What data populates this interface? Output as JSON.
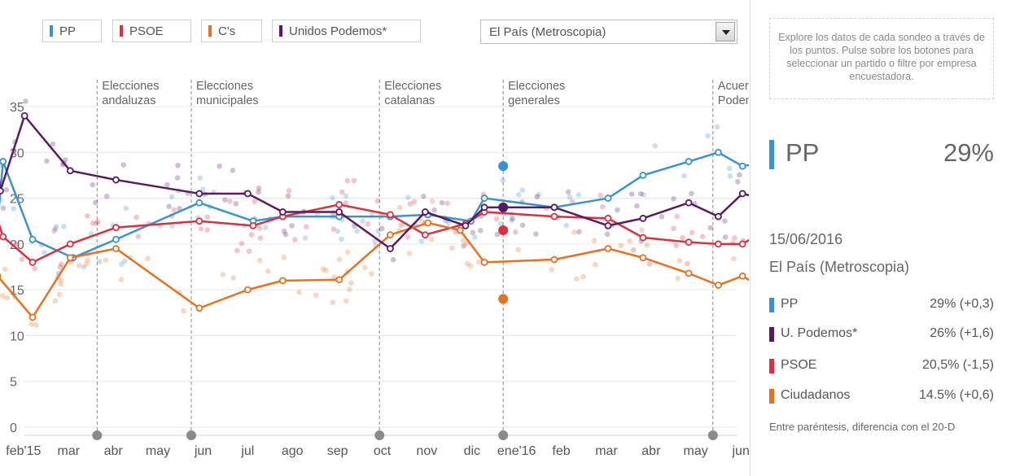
{
  "legend": [
    {
      "label": "PP",
      "color": "#3794d1"
    },
    {
      "label": "PSOE",
      "color": "#dc2f40"
    },
    {
      "label": "C's",
      "color": "#e8711f"
    },
    {
      "label": "Unidos Podemos*",
      "color": "#5a1a63"
    }
  ],
  "pollster_select": {
    "value": "El País (Metroscopia)"
  },
  "info_text": "Explore los datos de cada sondeo a través de los puntos. Pulse sobre los botones para seleccionar un partido o filtre por empresa encuestadora.",
  "selected": {
    "party": "PP",
    "value": "29%",
    "color": "#3794d1"
  },
  "detail": {
    "date": "15/06/2016",
    "pollster": "El País (Metroscopia)",
    "results": [
      {
        "name": "PP",
        "value": "29% (+0,3)",
        "color": "#3794d1"
      },
      {
        "name": "U. Podemos*",
        "value": "26% (+1,6)",
        "color": "#5a1a63"
      },
      {
        "name": "PSOE",
        "value": "20,5% (-1,5)",
        "color": "#dc2f40"
      },
      {
        "name": "Ciudadanos",
        "value": "14.5% (+0,6)",
        "color": "#e8711f"
      }
    ],
    "note": "Entre paréntesis, diferencia con el 20-D"
  },
  "chart_data": {
    "type": "line",
    "title": "",
    "xlabel": "",
    "ylabel": "",
    "ylim": [
      0,
      35
    ],
    "xlim": [
      2015.0,
      2016.5
    ],
    "y_ticks": [
      "0",
      "5",
      "10",
      "15",
      "20",
      "25",
      "30",
      "35"
    ],
    "x_ticks": [
      {
        "label": "feb'15",
        "x": 2015.083
      },
      {
        "label": "mar",
        "x": 2015.167
      },
      {
        "label": "abr",
        "x": 2015.25
      },
      {
        "label": "may",
        "x": 2015.333
      },
      {
        "label": "jun",
        "x": 2015.417
      },
      {
        "label": "jul",
        "x": 2015.5
      },
      {
        "label": "ago",
        "x": 2015.583
      },
      {
        "label": "sep",
        "x": 2015.667
      },
      {
        "label": "oct",
        "x": 2015.75
      },
      {
        "label": "nov",
        "x": 2015.833
      },
      {
        "label": "dic",
        "x": 2015.917
      },
      {
        "label": "ene'16",
        "x": 2016.0
      },
      {
        "label": "feb",
        "x": 2016.083
      },
      {
        "label": "mar",
        "x": 2016.167
      },
      {
        "label": "abr",
        "x": 2016.25
      },
      {
        "label": "may",
        "x": 2016.333
      },
      {
        "label": "jun",
        "x": 2016.417
      }
    ],
    "events": [
      {
        "label": [
          "Elecciones",
          "andaluzas"
        ],
        "x": 2015.22
      },
      {
        "label": [
          "Elecciones",
          "municipales"
        ],
        "x": 2015.395
      },
      {
        "label": [
          "Elecciones",
          "catalanas"
        ],
        "x": 2015.745
      },
      {
        "label": [
          "Elecciones",
          "generales"
        ],
        "x": 2015.975
      },
      {
        "label": [
          "Acuerdo",
          "Podemos-IU"
        ],
        "x": 2016.365
      }
    ],
    "series": [
      {
        "name": "PP",
        "color": "#3794d1",
        "x": [
          2015.03,
          2015.045,
          2015.1,
          2015.175,
          2015.255,
          2015.41,
          2015.51,
          2015.565,
          2015.67,
          2015.765,
          2015.835,
          2015.915,
          2015.94,
          2016.07,
          2016.17,
          2016.235,
          2016.32,
          2016.375,
          2016.42,
          2016.44,
          2016.46
        ],
        "y": [
          19,
          29,
          20.5,
          18.5,
          20.5,
          24.5,
          22.5,
          23,
          23,
          23,
          23.2,
          22.5,
          25,
          24,
          25,
          27.5,
          29,
          30,
          28.5,
          28.7,
          29
        ]
      },
      {
        "name": "PSOE",
        "color": "#dc2f40",
        "x": [
          2015.03,
          2015.045,
          2015.1,
          2015.17,
          2015.255,
          2015.41,
          2015.51,
          2015.565,
          2015.67,
          2015.765,
          2015.83,
          2015.905,
          2015.94,
          2016.07,
          2016.17,
          2016.235,
          2016.32,
          2016.375,
          2016.42,
          2016.44,
          2016.46
        ],
        "y": [
          23.5,
          20.8,
          18,
          20,
          21.8,
          22.5,
          22,
          23,
          24.3,
          23.2,
          21,
          22.2,
          23.5,
          23,
          22.8,
          20.7,
          20.2,
          20,
          20,
          20.7,
          20.5
        ]
      },
      {
        "name": "C's",
        "color": "#e8711f",
        "x": [
          2015.025,
          2015.035,
          2015.1,
          2015.17,
          2015.255,
          2015.41,
          2015.5,
          2015.565,
          2015.67,
          2015.765,
          2015.835,
          2015.895,
          2015.94,
          2016.07,
          2016.17,
          2016.235,
          2016.32,
          2016.375,
          2016.42,
          2016.44,
          2016.46
        ],
        "y": [
          8,
          16.5,
          12,
          18.5,
          19.5,
          13,
          15,
          16,
          16.1,
          21,
          22.3,
          21.5,
          18,
          18.3,
          19.5,
          18.5,
          16.8,
          15.5,
          16.5,
          15.8,
          14.5
        ]
      },
      {
        "name": "Unidos Podemos*",
        "color": "#5a1a63",
        "x": [
          2015.025,
          2015.04,
          2015.085,
          2015.17,
          2015.255,
          2015.41,
          2015.5,
          2015.565,
          2015.67,
          2015.765,
          2015.83,
          2015.905,
          2015.94,
          2016.07,
          2016.17,
          2016.235,
          2016.32,
          2016.375,
          2016.42,
          2016.44,
          2016.46
        ],
        "y": [
          33.5,
          25.8,
          34,
          28,
          27,
          25.5,
          25.5,
          23.5,
          23.5,
          19.5,
          23.5,
          22,
          24,
          24,
          22,
          22.8,
          24.5,
          23,
          25.5,
          25.2,
          26
        ]
      }
    ],
    "highlight_points": [
      {
        "series": "PP",
        "x": 2015.975,
        "y": 28.5
      },
      {
        "series": "Unidos Podemos*",
        "x": 2015.975,
        "y": 24
      },
      {
        "series": "PSOE",
        "x": 2015.975,
        "y": 21.5
      },
      {
        "series": "C's",
        "x": 2015.975,
        "y": 14
      }
    ]
  }
}
